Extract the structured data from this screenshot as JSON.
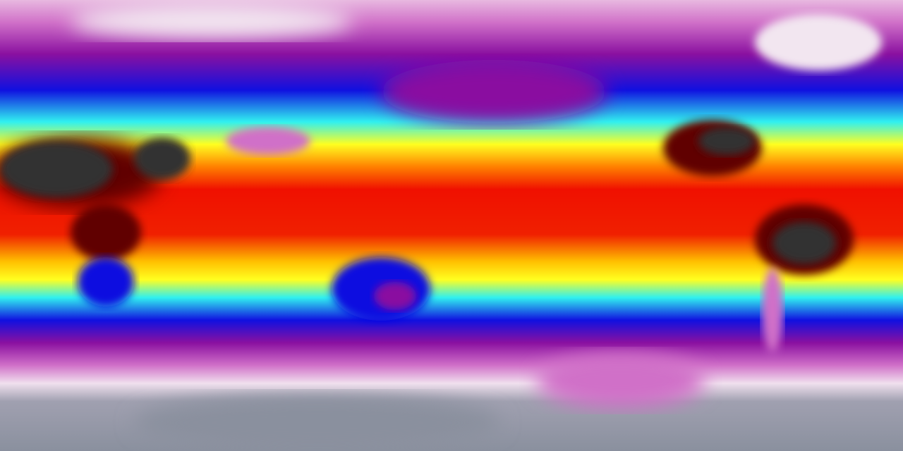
{
  "map": {
    "projection": "equirectangular",
    "palette": {
      "polar_light": "#f2e6f0",
      "pink": "#d070c8",
      "purple": "#8a10a0",
      "blue": "#1010e0",
      "cyan": "#30f0f0",
      "yellow": "#ffff20",
      "orange": "#ff8000",
      "red": "#f01000",
      "dark_red": "#600000",
      "hot_black": "#303030",
      "antarctic_gray": "#8a909e"
    }
  }
}
